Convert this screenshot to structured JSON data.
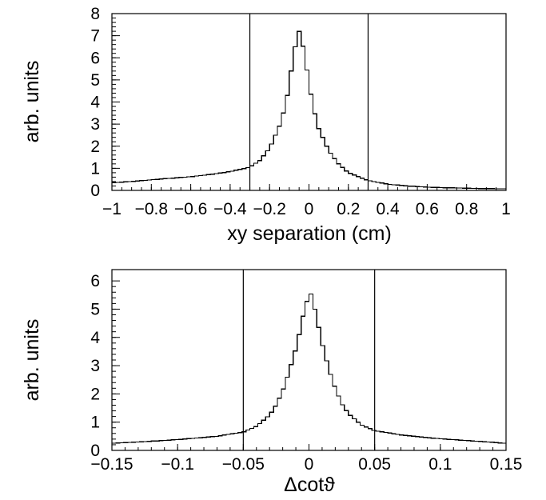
{
  "chart_data": [
    {
      "type": "histogram",
      "ylabel": "arb. units",
      "xlabel": "xy separation (cm)",
      "xlim": [
        -1,
        1
      ],
      "ylim": [
        0,
        8
      ],
      "x_ticks": [
        "−1",
        "−0.8",
        "−0.6",
        "−0.4",
        "−0.2",
        "0",
        "0.2",
        "0.4",
        "0.6",
        "0.8",
        "1"
      ],
      "x_tick_values": [
        -1,
        -0.8,
        -0.6,
        -0.4,
        -0.2,
        0,
        0.2,
        0.4,
        0.6,
        0.8,
        1
      ],
      "y_ticks": [
        "0",
        "1",
        "2",
        "3",
        "4",
        "5",
        "6",
        "7",
        "8"
      ],
      "y_tick_values": [
        0,
        1,
        2,
        3,
        4,
        5,
        6,
        7,
        8
      ],
      "vertical_lines": [
        -0.3,
        0.3
      ],
      "peak": {
        "x": -0.05,
        "y": 7.2
      },
      "series": [
        {
          "points": [
            [
              -1.0,
              0.35
            ],
            [
              -0.9,
              0.4
            ],
            [
              -0.8,
              0.48
            ],
            [
              -0.7,
              0.55
            ],
            [
              -0.6,
              0.62
            ],
            [
              -0.5,
              0.72
            ],
            [
              -0.4,
              0.85
            ],
            [
              -0.35,
              0.95
            ],
            [
              -0.3,
              1.05
            ],
            [
              -0.25,
              1.35
            ],
            [
              -0.2,
              1.9
            ],
            [
              -0.15,
              2.9
            ],
            [
              -0.12,
              3.8
            ],
            [
              -0.1,
              4.8
            ],
            [
              -0.08,
              6.0
            ],
            [
              -0.06,
              7.0
            ],
            [
              -0.05,
              7.2
            ],
            [
              -0.04,
              7.05
            ],
            [
              -0.02,
              6.0
            ],
            [
              0.0,
              4.9
            ],
            [
              0.02,
              3.8
            ],
            [
              0.05,
              2.8
            ],
            [
              0.1,
              1.8
            ],
            [
              0.15,
              1.2
            ],
            [
              0.2,
              0.8
            ],
            [
              0.3,
              0.45
            ],
            [
              0.4,
              0.28
            ],
            [
              0.5,
              0.2
            ],
            [
              0.6,
              0.15
            ],
            [
              0.7,
              0.12
            ],
            [
              0.8,
              0.1
            ],
            [
              0.9,
              0.08
            ],
            [
              1.0,
              0.07
            ]
          ]
        }
      ]
    },
    {
      "type": "histogram",
      "ylabel": "arb. units",
      "xlabel": "Δcotϑ",
      "xlim": [
        -0.15,
        0.15
      ],
      "ylim": [
        0,
        6.4
      ],
      "x_ticks": [
        "−0.15",
        "−0.1",
        "−0.05",
        "0",
        "0.05",
        "0.1",
        "0.15"
      ],
      "x_tick_values": [
        -0.15,
        -0.1,
        -0.05,
        0,
        0.05,
        0.1,
        0.15
      ],
      "y_ticks": [
        "0",
        "1",
        "2",
        "3",
        "4",
        "5",
        "6"
      ],
      "y_tick_values": [
        0,
        1,
        2,
        3,
        4,
        5,
        6
      ],
      "vertical_lines": [
        -0.05,
        0.05
      ],
      "peak": {
        "x": 0.0,
        "y": 5.65
      },
      "series": [
        {
          "points": [
            [
              -0.15,
              0.25
            ],
            [
              -0.13,
              0.3
            ],
            [
              -0.11,
              0.35
            ],
            [
              -0.09,
              0.42
            ],
            [
              -0.07,
              0.5
            ],
            [
              -0.05,
              0.65
            ],
            [
              -0.04,
              0.85
            ],
            [
              -0.03,
              1.25
            ],
            [
              -0.025,
              1.6
            ],
            [
              -0.02,
              2.1
            ],
            [
              -0.015,
              2.8
            ],
            [
              -0.01,
              3.6
            ],
            [
              -0.005,
              4.6
            ],
            [
              -0.003,
              5.2
            ],
            [
              -0.001,
              5.3
            ],
            [
              0.0,
              5.65
            ],
            [
              0.002,
              5.5
            ],
            [
              0.005,
              4.9
            ],
            [
              0.01,
              3.8
            ],
            [
              0.015,
              2.9
            ],
            [
              0.02,
              2.2
            ],
            [
              0.025,
              1.65
            ],
            [
              0.03,
              1.3
            ],
            [
              0.04,
              0.9
            ],
            [
              0.05,
              0.7
            ],
            [
              0.07,
              0.55
            ],
            [
              0.09,
              0.45
            ],
            [
              0.11,
              0.38
            ],
            [
              0.13,
              0.32
            ],
            [
              0.15,
              0.25
            ]
          ]
        }
      ]
    }
  ]
}
